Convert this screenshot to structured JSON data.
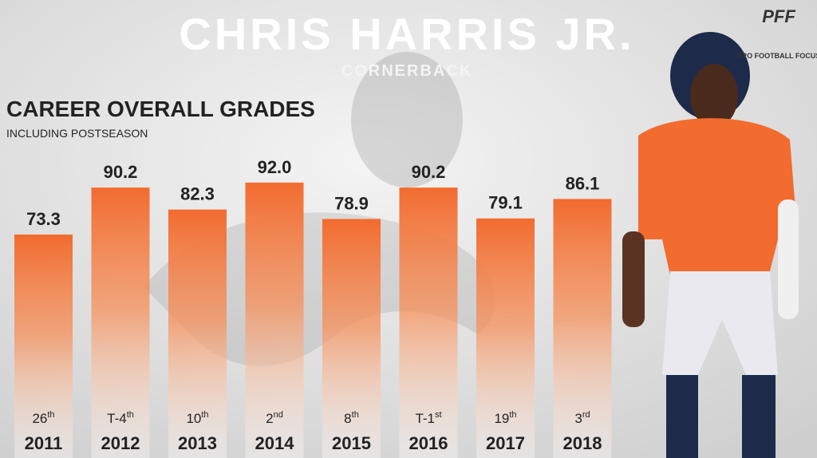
{
  "chart_data": {
    "type": "bar",
    "title": "CHRIS HARRIS JR.",
    "subtitle": "CORNERBACK",
    "chart_title": "CAREER OVERALL GRADES",
    "chart_subtitle": "INCLUDING POSTSEASON",
    "categories": [
      "2011",
      "2012",
      "2013",
      "2014",
      "2015",
      "2016",
      "2017",
      "2018"
    ],
    "values": [
      73.3,
      90.2,
      82.3,
      92.0,
      78.9,
      90.2,
      79.1,
      86.1
    ],
    "value_labels": [
      "73.3",
      "90.2",
      "82.3",
      "92.0",
      "78.9",
      "90.2",
      "79.1",
      "86.1"
    ],
    "rank_labels": [
      {
        "text": "26",
        "sup": "th"
      },
      {
        "text": "T-4",
        "sup": "th"
      },
      {
        "text": "10",
        "sup": "th"
      },
      {
        "text": "2",
        "sup": "nd"
      },
      {
        "text": "8",
        "sup": "th"
      },
      {
        "text": "T-1",
        "sup": "st"
      },
      {
        "text": "19",
        "sup": "th"
      },
      {
        "text": "3",
        "sup": "rd"
      }
    ],
    "color": "#f26b2f",
    "ylim": [
      0,
      100
    ]
  },
  "logo": {
    "mark": "PFF",
    "name": "PRO FOOTBALL FOCUS"
  }
}
